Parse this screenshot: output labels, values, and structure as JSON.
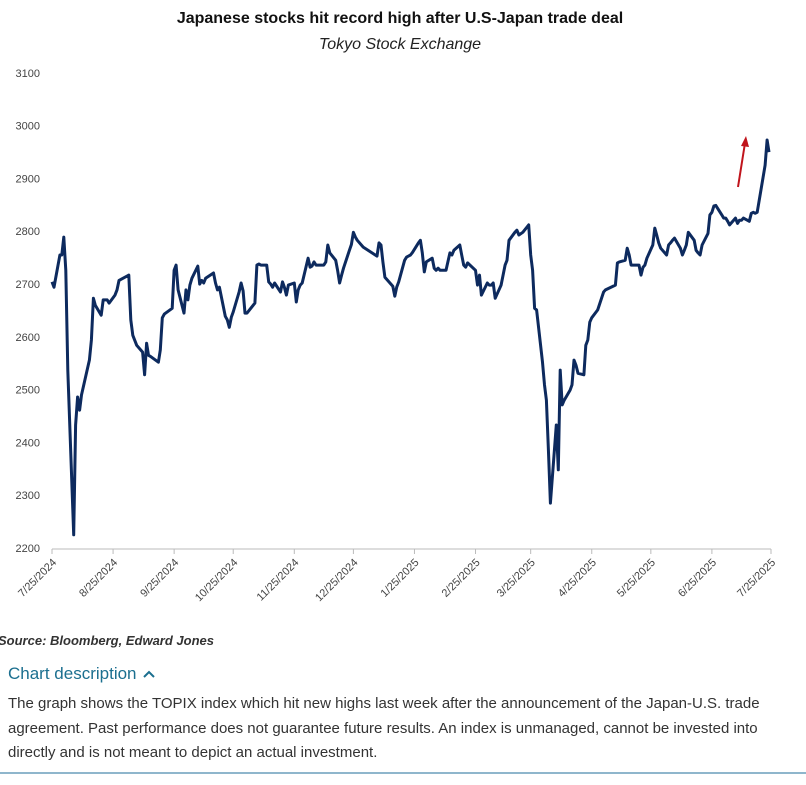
{
  "chart_data": {
    "type": "line",
    "title": "Japanese stocks hit record high after U.S-Japan trade deal",
    "subtitle": "Tokyo Stock Exchange",
    "x": [
      "7/25/2024",
      "7/26/2024",
      "7/29/2024",
      "7/30/2024",
      "7/31/2024",
      "8/1/2024",
      "8/2/2024",
      "8/5/2024",
      "8/6/2024",
      "8/7/2024",
      "8/8/2024",
      "8/9/2024",
      "8/13/2024",
      "8/14/2024",
      "8/15/2024",
      "8/16/2024",
      "8/19/2024",
      "8/20/2024",
      "8/22/2024",
      "8/23/2024",
      "8/26/2024",
      "8/27/2024",
      "8/28/2024",
      "8/30/2024",
      "9/2/2024",
      "9/3/2024",
      "9/4/2024",
      "9/6/2024",
      "9/9/2024",
      "9/10/2024",
      "9/11/2024",
      "9/12/2024",
      "9/13/2024",
      "9/17/2024",
      "9/18/2024",
      "9/19/2024",
      "9/20/2024",
      "9/24/2024",
      "9/25/2024",
      "9/26/2024",
      "9/27/2024",
      "9/30/2024",
      "10/1/2024",
      "10/2/2024",
      "10/3/2024",
      "10/4/2024",
      "10/7/2024",
      "10/8/2024",
      "10/9/2024",
      "10/10/2024",
      "10/11/2024",
      "10/15/2024",
      "10/16/2024",
      "10/17/2024",
      "10/18/2024",
      "10/21/2024",
      "10/22/2024",
      "10/23/2024",
      "10/24/2024",
      "10/25/2024",
      "10/28/2024",
      "10/29/2024",
      "10/30/2024",
      "10/31/2024",
      "11/1/2024",
      "11/5/2024",
      "11/6/2024",
      "11/7/2024",
      "11/8/2024",
      "11/11/2024",
      "11/12/2024",
      "11/13/2024",
      "11/14/2024",
      "11/15/2024",
      "11/18/2024",
      "11/19/2024",
      "11/20/2024",
      "11/21/2024",
      "11/22/2024",
      "11/25/2024",
      "11/26/2024",
      "11/27/2024",
      "11/28/2024",
      "11/29/2024",
      "12/2/2024",
      "12/3/2024",
      "12/4/2024",
      "12/5/2024",
      "12/6/2024",
      "12/9/2024",
      "12/10/2024",
      "12/11/2024",
      "12/12/2024",
      "12/13/2024",
      "12/16/2024",
      "12/17/2024",
      "12/18/2024",
      "12/19/2024",
      "12/20/2024",
      "12/23/2024",
      "12/24/2024",
      "12/25/2024",
      "12/26/2024",
      "12/27/2024",
      "12/30/2024",
      "1/6/2025",
      "1/7/2025",
      "1/8/2025",
      "1/9/2025",
      "1/10/2025",
      "1/14/2025",
      "1/15/2025",
      "1/16/2025",
      "1/17/2025",
      "1/20/2025",
      "1/21/2025",
      "1/22/2025",
      "1/23/2025",
      "1/24/2025",
      "1/27/2025",
      "1/28/2025",
      "1/29/2025",
      "1/30/2025",
      "1/31/2025",
      "2/3/2025",
      "2/4/2025",
      "2/5/2025",
      "2/6/2025",
      "2/7/2025",
      "2/10/2025",
      "2/12/2025",
      "2/13/2025",
      "2/14/2025",
      "2/17/2025",
      "2/18/2025",
      "2/19/2025",
      "2/20/2025",
      "2/21/2025",
      "2/25/2025",
      "2/26/2025",
      "2/27/2025",
      "2/28/2025",
      "3/3/2025",
      "3/4/2025",
      "3/5/2025",
      "3/6/2025",
      "3/7/2025",
      "3/10/2025",
      "3/11/2025",
      "3/12/2025",
      "3/13/2025",
      "3/14/2025",
      "3/17/2025",
      "3/18/2025",
      "3/19/2025",
      "3/21/2025",
      "3/24/2025",
      "3/25/2025",
      "3/26/2025",
      "3/27/2025",
      "3/28/2025",
      "3/31/2025",
      "4/1/2025",
      "4/2/2025",
      "4/3/2025",
      "4/4/2025",
      "4/7/2025",
      "4/8/2025",
      "4/9/2025",
      "4/10/2025",
      "4/11/2025",
      "4/14/2025",
      "4/15/2025",
      "4/16/2025",
      "4/17/2025",
      "4/18/2025",
      "4/21/2025",
      "4/22/2025",
      "4/23/2025",
      "4/24/2025",
      "4/25/2025",
      "4/28/2025",
      "5/1/2025",
      "5/2/2025",
      "5/7/2025",
      "5/8/2025",
      "5/9/2025",
      "5/12/2025",
      "5/13/2025",
      "5/14/2025",
      "5/15/2025",
      "5/16/2025",
      "5/19/2025",
      "5/20/2025",
      "5/21/2025",
      "5/22/2025",
      "5/23/2025",
      "5/26/2025",
      "5/27/2025",
      "5/28/2025",
      "5/29/2025",
      "5/30/2025",
      "6/2/2025",
      "6/3/2025",
      "6/4/2025",
      "6/5/2025",
      "6/6/2025",
      "6/9/2025",
      "6/10/2025",
      "6/11/2025",
      "6/12/2025",
      "6/13/2025",
      "6/16/2025",
      "6/17/2025",
      "6/18/2025",
      "6/19/2025",
      "6/20/2025",
      "6/23/2025",
      "6/24/2025",
      "6/25/2025",
      "6/26/2025",
      "6/27/2025",
      "6/30/2025",
      "7/1/2025",
      "7/2/2025",
      "7/3/2025",
      "7/4/2025",
      "7/7/2025",
      "7/8/2025",
      "7/9/2025",
      "7/10/2025",
      "7/11/2025",
      "7/14/2025",
      "7/15/2025",
      "7/16/2025",
      "7/17/2025",
      "7/18/2025",
      "7/22/2025",
      "7/23/2025",
      "7/24/2025"
    ],
    "values": [
      2706,
      2696,
      2757,
      2757,
      2791,
      2728,
      2539,
      2227,
      2435,
      2488,
      2463,
      2492,
      2558,
      2596,
      2675,
      2662,
      2643,
      2672,
      2672,
      2666,
      2681,
      2691,
      2709,
      2713,
      2719,
      2634,
      2605,
      2586,
      2573,
      2530,
      2590,
      2567,
      2565,
      2554,
      2577,
      2638,
      2645,
      2656,
      2728,
      2738,
      2691,
      2647,
      2691,
      2672,
      2700,
      2713,
      2736,
      2702,
      2709,
      2704,
      2713,
      2723,
      2704,
      2691,
      2696,
      2641,
      2634,
      2620,
      2639,
      2649,
      2687,
      2704,
      2689,
      2647,
      2647,
      2666,
      2738,
      2740,
      2738,
      2738,
      2706,
      2702,
      2696,
      2704,
      2687,
      2706,
      2696,
      2681,
      2700,
      2704,
      2668,
      2691,
      2700,
      2704,
      2751,
      2734,
      2736,
      2744,
      2738,
      2738,
      2738,
      2744,
      2776,
      2761,
      2747,
      2728,
      2704,
      2719,
      2732,
      2766,
      2777,
      2800,
      2791,
      2785,
      2772,
      2755,
      2780,
      2776,
      2744,
      2715,
      2698,
      2679,
      2696,
      2706,
      2747,
      2753,
      2755,
      2757,
      2762,
      2780,
      2785,
      2761,
      2725,
      2744,
      2751,
      2732,
      2728,
      2732,
      2728,
      2728,
      2761,
      2757,
      2766,
      2776,
      2757,
      2738,
      2734,
      2742,
      2728,
      2700,
      2719,
      2681,
      2704,
      2700,
      2700,
      2704,
      2675,
      2700,
      2719,
      2738,
      2747,
      2785,
      2800,
      2804,
      2795,
      2800,
      2814,
      2757,
      2728,
      2656,
      2653,
      2554,
      2511,
      2482,
      2388,
      2287,
      2435,
      2350,
      2539,
      2473,
      2482,
      2501,
      2511,
      2558,
      2548,
      2533,
      2530,
      2586,
      2596,
      2630,
      2638,
      2653,
      2687,
      2691,
      2700,
      2742,
      2744,
      2747,
      2770,
      2757,
      2738,
      2738,
      2738,
      2719,
      2734,
      2738,
      2751,
      2776,
      2808,
      2795,
      2780,
      2770,
      2757,
      2776,
      2780,
      2785,
      2789,
      2770,
      2757,
      2766,
      2776,
      2800,
      2785,
      2766,
      2761,
      2757,
      2776,
      2798,
      2833,
      2838,
      2850,
      2851,
      2833,
      2827,
      2827,
      2821,
      2814,
      2827,
      2817,
      2823,
      2823,
      2827,
      2821,
      2836,
      2838,
      2836,
      2838,
      2927,
      2975,
      2952
    ],
    "color": "#0d2a5e",
    "xlim": [
      "7/25/2024",
      "7/25/2025"
    ],
    "xticks": [
      "7/25/2024",
      "8/25/2024",
      "9/25/2024",
      "10/25/2024",
      "11/25/2024",
      "12/25/2024",
      "1/25/2025",
      "2/25/2025",
      "3/25/2025",
      "4/25/2025",
      "5/25/2025",
      "6/25/2025",
      "7/25/2025"
    ],
    "ylim": [
      2200,
      3100
    ],
    "yticks": [
      2200,
      2300,
      2400,
      2500,
      2600,
      2700,
      2800,
      2900,
      3000,
      3100
    ],
    "grid": false
  },
  "source": "Source: Bloomberg, Edward Jones",
  "description_heading": "Chart description",
  "description": "The graph shows the TOPIX index which hit new highs last week after the announcement of the Japan-U.S. trade agreement. Past performance does not guarantee future results. An index is unmanaged, cannot be invested into directly and is not meant to depict an actual investment."
}
